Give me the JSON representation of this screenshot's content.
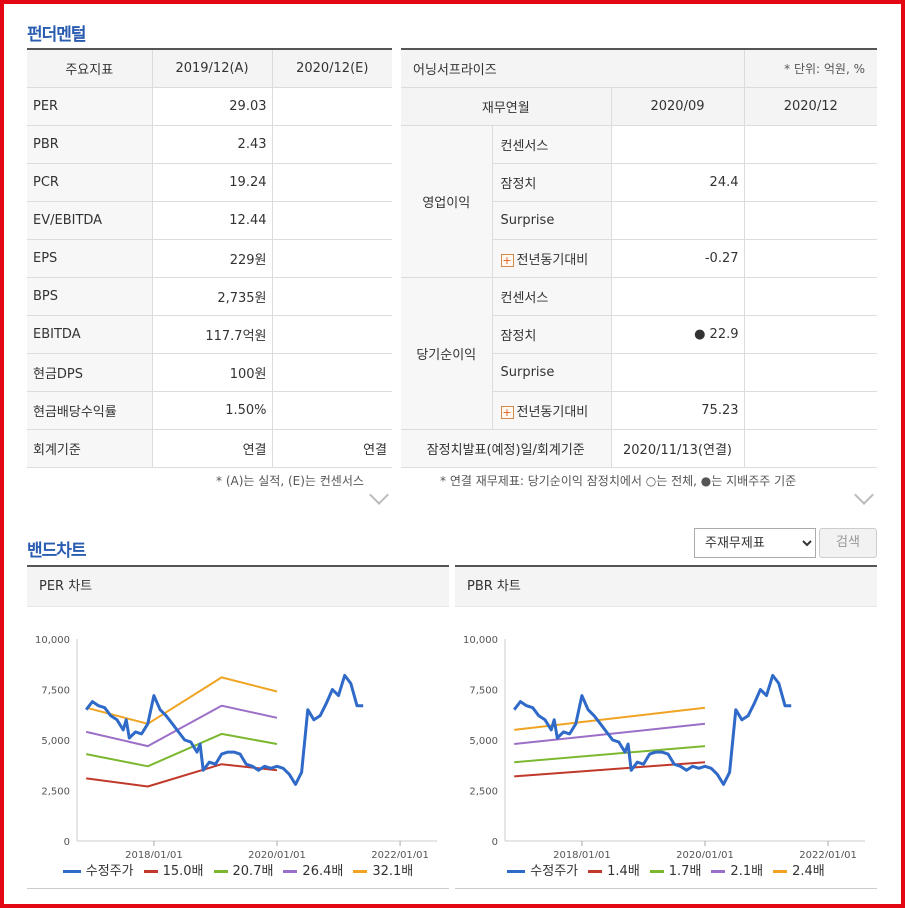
{
  "fundamental": {
    "title": "펀더멘털",
    "headers": [
      "주요지표",
      "2019/12(A)",
      "2020/12(E)"
    ],
    "rows": [
      {
        "label": "PER",
        "a": "29.03",
        "e": ""
      },
      {
        "label": "PBR",
        "a": "2.43",
        "e": ""
      },
      {
        "label": "PCR",
        "a": "19.24",
        "e": ""
      },
      {
        "label": "EV/EBITDA",
        "a": "12.44",
        "e": ""
      },
      {
        "label": "EPS",
        "a": "229원",
        "e": ""
      },
      {
        "label": "BPS",
        "a": "2,735원",
        "e": ""
      },
      {
        "label": "EBITDA",
        "a": "117.7억원",
        "e": ""
      },
      {
        "label": "현금DPS",
        "a": "100원",
        "e": ""
      },
      {
        "label": "현금배당수익률",
        "a": "1.50%",
        "e": ""
      },
      {
        "label": "회계기준",
        "a": "연결",
        "e": "연결"
      }
    ],
    "note": "* (A)는 실적, (E)는 컨센서스"
  },
  "earnings": {
    "title": "어닝서프라이즈",
    "unit": "* 단위: 억원, %",
    "headers": [
      "재무연월",
      "2020/09",
      "2020/12"
    ],
    "groups": [
      {
        "name": "영업이익",
        "rows": [
          {
            "label": "컨센서스",
            "v1": "",
            "v2": "",
            "plus": false
          },
          {
            "label": "잠정치",
            "v1": "24.4",
            "v2": "",
            "plus": false
          },
          {
            "label": "Surprise",
            "v1": "",
            "v2": "",
            "plus": false
          },
          {
            "label": "전년동기대비",
            "v1": "-0.27",
            "v2": "",
            "plus": true
          }
        ]
      },
      {
        "name": "당기순이익",
        "rows": [
          {
            "label": "컨센서스",
            "v1": "",
            "v2": "",
            "plus": false
          },
          {
            "label": "잠정치",
            "v1": "● 22.9",
            "v2": "",
            "plus": false
          },
          {
            "label": "Surprise",
            "v1": "",
            "v2": "",
            "plus": false
          },
          {
            "label": "전년동기대비",
            "v1": "75.23",
            "v2": "",
            "plus": true
          }
        ]
      }
    ],
    "footer_label": "잠정치발표(예정)일/회계기준",
    "footer_value": "2020/11/13(연결)",
    "note": "* 연결 재무제표: 당기순이익 잠정치에서 ○는 전체, ●는 지배주주 기준"
  },
  "band": {
    "title": "밴드차트",
    "select_value": "주재무제표",
    "select_options": [
      "주재무제표"
    ],
    "search_label": "검색"
  },
  "chart_data": [
    {
      "type": "line",
      "title": "PER 차트",
      "ylim": [
        0,
        10000
      ],
      "yticks": [
        "10,000",
        "7,500",
        "5,000",
        "2,500",
        "0"
      ],
      "xticks": [
        "2018/01/01",
        "2020/01/01",
        "2022/01/01"
      ],
      "series": [
        {
          "name": "수정주가",
          "color": "#2f6ac9",
          "points": [
            [
              2016.9,
              6500
            ],
            [
              2017.0,
              6900
            ],
            [
              2017.1,
              6700
            ],
            [
              2017.2,
              6600
            ],
            [
              2017.3,
              6200
            ],
            [
              2017.4,
              6000
            ],
            [
              2017.5,
              5500
            ],
            [
              2017.55,
              6000
            ],
            [
              2017.6,
              5100
            ],
            [
              2017.7,
              5400
            ],
            [
              2017.8,
              5300
            ],
            [
              2017.9,
              5800
            ],
            [
              2018.0,
              7200
            ],
            [
              2018.1,
              6500
            ],
            [
              2018.2,
              6200
            ],
            [
              2018.3,
              5800
            ],
            [
              2018.4,
              5400
            ],
            [
              2018.5,
              5000
            ],
            [
              2018.6,
              4900
            ],
            [
              2018.7,
              4400
            ],
            [
              2018.75,
              4800
            ],
            [
              2018.8,
              3500
            ],
            [
              2018.9,
              3900
            ],
            [
              2019.0,
              3800
            ],
            [
              2019.1,
              4300
            ],
            [
              2019.2,
              4400
            ],
            [
              2019.3,
              4400
            ],
            [
              2019.4,
              4300
            ],
            [
              2019.5,
              3800
            ],
            [
              2019.6,
              3700
            ],
            [
              2019.7,
              3500
            ],
            [
              2019.8,
              3700
            ],
            [
              2019.9,
              3600
            ],
            [
              2020.0,
              3700
            ],
            [
              2020.1,
              3600
            ],
            [
              2020.2,
              3300
            ],
            [
              2020.3,
              2800
            ],
            [
              2020.4,
              3400
            ],
            [
              2020.5,
              6500
            ],
            [
              2020.6,
              6000
            ],
            [
              2020.7,
              6200
            ],
            [
              2020.8,
              6800
            ],
            [
              2020.9,
              7500
            ],
            [
              2021.0,
              7200
            ],
            [
              2021.1,
              8200
            ],
            [
              2021.2,
              7800
            ],
            [
              2021.3,
              6700
            ],
            [
              2021.4,
              6700
            ]
          ]
        },
        {
          "name": "15.0배",
          "color": "#c0392b",
          "points": [
            [
              2016.9,
              3100
            ],
            [
              2017.9,
              2700
            ],
            [
              2019.1,
              3800
            ],
            [
              2020.0,
              3500
            ]
          ]
        },
        {
          "name": "20.7배",
          "color": "#7cb82f",
          "points": [
            [
              2016.9,
              4300
            ],
            [
              2017.9,
              3700
            ],
            [
              2019.1,
              5300
            ],
            [
              2020.0,
              4800
            ]
          ]
        },
        {
          "name": "26.4배",
          "color": "#9b6fc7",
          "points": [
            [
              2016.9,
              5400
            ],
            [
              2017.9,
              4700
            ],
            [
              2019.1,
              6700
            ],
            [
              2020.0,
              6100
            ]
          ]
        },
        {
          "name": "32.1배",
          "color": "#f0a422",
          "points": [
            [
              2016.9,
              6600
            ],
            [
              2017.9,
              5800
            ],
            [
              2019.1,
              8100
            ],
            [
              2020.0,
              7400
            ]
          ]
        }
      ]
    },
    {
      "type": "line",
      "title": "PBR 차트",
      "ylim": [
        0,
        10000
      ],
      "yticks": [
        "10,000",
        "7,500",
        "5,000",
        "2,500",
        "0"
      ],
      "xticks": [
        "2018/01/01",
        "2020/01/01",
        "2022/01/01"
      ],
      "series": [
        {
          "name": "수정주가",
          "color": "#2f6ac9",
          "points": [
            [
              2016.9,
              6500
            ],
            [
              2017.0,
              6900
            ],
            [
              2017.1,
              6700
            ],
            [
              2017.2,
              6600
            ],
            [
              2017.3,
              6200
            ],
            [
              2017.4,
              6000
            ],
            [
              2017.5,
              5500
            ],
            [
              2017.55,
              6000
            ],
            [
              2017.6,
              5100
            ],
            [
              2017.7,
              5400
            ],
            [
              2017.8,
              5300
            ],
            [
              2017.9,
              5800
            ],
            [
              2018.0,
              7200
            ],
            [
              2018.1,
              6500
            ],
            [
              2018.2,
              6200
            ],
            [
              2018.3,
              5800
            ],
            [
              2018.4,
              5400
            ],
            [
              2018.5,
              5000
            ],
            [
              2018.6,
              4900
            ],
            [
              2018.7,
              4400
            ],
            [
              2018.75,
              4800
            ],
            [
              2018.8,
              3500
            ],
            [
              2018.9,
              3900
            ],
            [
              2019.0,
              3800
            ],
            [
              2019.1,
              4300
            ],
            [
              2019.2,
              4400
            ],
            [
              2019.3,
              4400
            ],
            [
              2019.4,
              4300
            ],
            [
              2019.5,
              3800
            ],
            [
              2019.6,
              3700
            ],
            [
              2019.7,
              3500
            ],
            [
              2019.8,
              3700
            ],
            [
              2019.9,
              3600
            ],
            [
              2020.0,
              3700
            ],
            [
              2020.1,
              3600
            ],
            [
              2020.2,
              3300
            ],
            [
              2020.3,
              2800
            ],
            [
              2020.4,
              3400
            ],
            [
              2020.5,
              6500
            ],
            [
              2020.6,
              6000
            ],
            [
              2020.7,
              6200
            ],
            [
              2020.8,
              6800
            ],
            [
              2020.9,
              7500
            ],
            [
              2021.0,
              7200
            ],
            [
              2021.1,
              8200
            ],
            [
              2021.2,
              7800
            ],
            [
              2021.3,
              6700
            ],
            [
              2021.4,
              6700
            ]
          ]
        },
        {
          "name": "1.4배",
          "color": "#c0392b",
          "points": [
            [
              2016.9,
              3200
            ],
            [
              2020.0,
              3900
            ]
          ]
        },
        {
          "name": "1.7배",
          "color": "#7cb82f",
          "points": [
            [
              2016.9,
              3900
            ],
            [
              2020.0,
              4700
            ]
          ]
        },
        {
          "name": "2.1배",
          "color": "#9b6fc7",
          "points": [
            [
              2016.9,
              4800
            ],
            [
              2020.0,
              5800
            ]
          ]
        },
        {
          "name": "2.4배",
          "color": "#f0a422",
          "points": [
            [
              2016.9,
              5500
            ],
            [
              2020.0,
              6600
            ]
          ]
        }
      ]
    }
  ]
}
